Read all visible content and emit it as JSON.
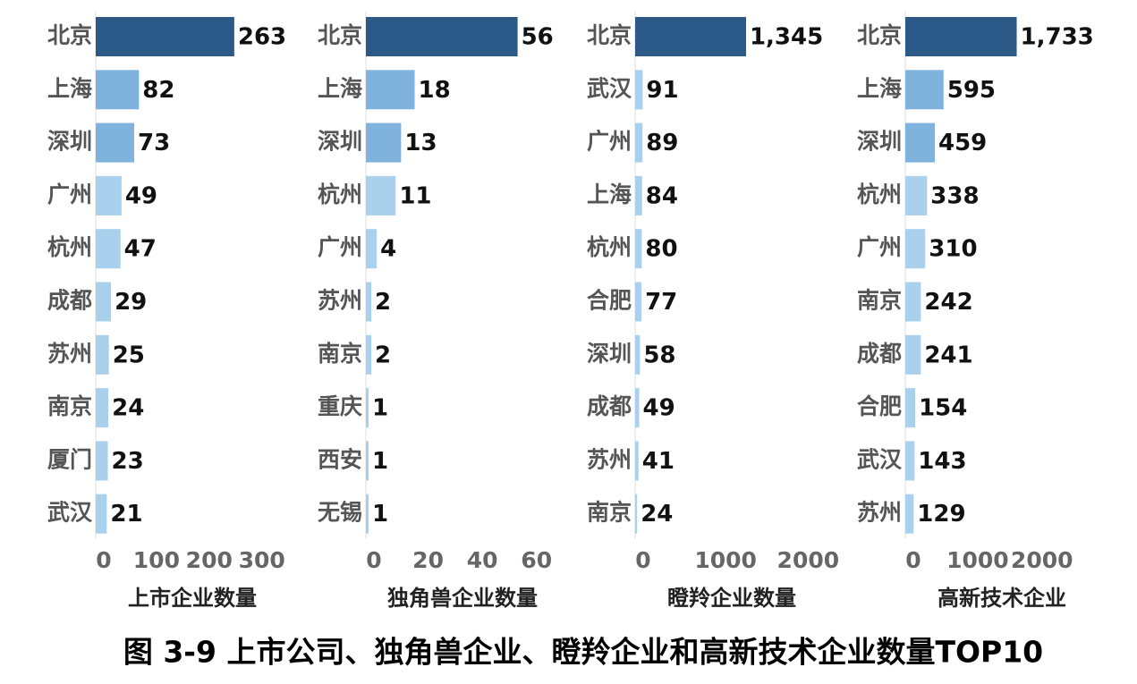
{
  "caption": "图 3-9  上市公司、独角兽企业、瞪羚企业和高新技术企业数量TOP10",
  "chart_data": [
    {
      "type": "bar",
      "orientation": "horizontal",
      "xlabel": "上市企业数量",
      "categories": [
        "北京",
        "上海",
        "深圳",
        "广州",
        "杭州",
        "成都",
        "苏州",
        "南京",
        "厦门",
        "武汉"
      ],
      "values": [
        263,
        82,
        73,
        49,
        47,
        29,
        25,
        24,
        23,
        21
      ],
      "color": "#a9d0ec",
      "mid_color": "#7fb3dd",
      "highlight_color": "#2c5a88",
      "xlim": [
        0,
        360
      ],
      "xticks": [
        0,
        100,
        200,
        300
      ]
    },
    {
      "type": "bar",
      "orientation": "horizontal",
      "xlabel": "独角兽企业数量",
      "categories": [
        "北京",
        "上海",
        "深圳",
        "杭州",
        "广州",
        "苏州",
        "南京",
        "重庆",
        "西安",
        "无锡"
      ],
      "values": [
        56,
        18,
        13,
        11,
        4,
        2,
        2,
        1,
        1,
        1
      ],
      "color": "#a9d0ec",
      "mid_color": "#7fb3dd",
      "highlight_color": "#2c5a88",
      "xlim": [
        0,
        70
      ],
      "xticks": [
        0,
        20,
        40,
        60
      ]
    },
    {
      "type": "bar",
      "orientation": "horizontal",
      "xlabel": "瞪羚企业数量",
      "categories": [
        "北京",
        "武汉",
        "广州",
        "上海",
        "杭州",
        "合肥",
        "深圳",
        "成都",
        "苏州",
        "南京"
      ],
      "values": [
        1345,
        91,
        89,
        84,
        80,
        77,
        58,
        49,
        41,
        24
      ],
      "value_labels": [
        "1,345",
        "91",
        "89",
        "84",
        "80",
        "77",
        "58",
        "49",
        "41",
        "24"
      ],
      "color": "#a9d0ec",
      "mid_color": "#a9d0ec",
      "highlight_color": "#2c5a88",
      "xlim": [
        0,
        2300
      ],
      "xticks": [
        0,
        1000,
        2000
      ]
    },
    {
      "type": "bar",
      "orientation": "horizontal",
      "xlabel": "高新技术企业",
      "categories": [
        "北京",
        "上海",
        "深圳",
        "杭州",
        "广州",
        "南京",
        "成都",
        "合肥",
        "武汉",
        "苏州"
      ],
      "values": [
        1733,
        595,
        459,
        338,
        310,
        242,
        241,
        154,
        143,
        129
      ],
      "value_labels": [
        "1,733",
        "595",
        "459",
        "338",
        "310",
        "242",
        "241",
        "154",
        "143",
        "129"
      ],
      "color": "#a9d0ec",
      "mid_color": "#7fb3dd",
      "highlight_color": "#2c5a88",
      "xlim": [
        0,
        2950
      ],
      "xticks": [
        0,
        1000,
        2000
      ]
    }
  ]
}
